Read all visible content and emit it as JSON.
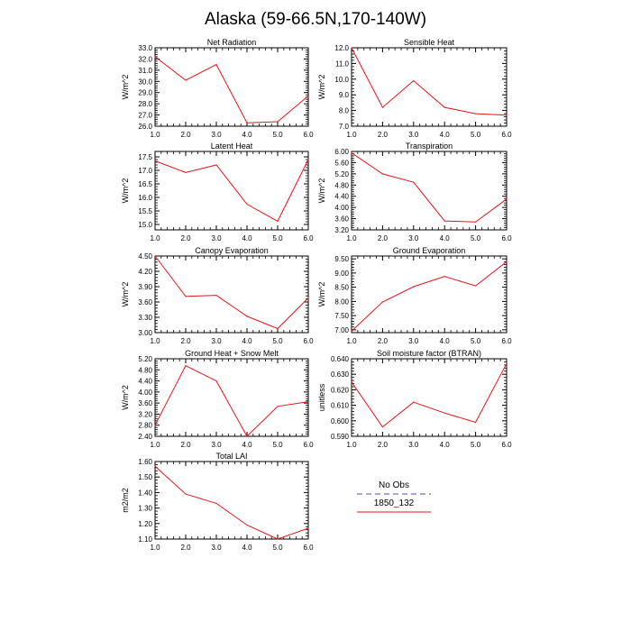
{
  "figure": {
    "title": "Alaska (59-66.5N,170-140W)"
  },
  "legend": {
    "entries": [
      {
        "label": "No Obs",
        "color": "#8a8ae0",
        "dashed": true
      },
      {
        "label": "1850_132",
        "color": "#e8141b",
        "dashed": false
      }
    ]
  },
  "chart_data": [
    {
      "type": "line",
      "title": "Net Radiation",
      "ylabel": "W/m^2",
      "x": [
        1,
        2,
        3,
        4,
        5,
        6
      ],
      "xlim": [
        1,
        6
      ],
      "xticks": [
        "1.0",
        "2.0",
        "3.0",
        "4.0",
        "5.0",
        "6.0"
      ],
      "ylim": [
        26,
        33
      ],
      "yticks": [
        "26.0",
        "27.0",
        "28.0",
        "29.0",
        "30.0",
        "31.0",
        "32.0",
        "33.0"
      ],
      "series": [
        {
          "name": "1850_132",
          "color": "#e8141b",
          "values": [
            32.2,
            30.1,
            31.5,
            26.3,
            26.4,
            28.7
          ]
        }
      ]
    },
    {
      "type": "line",
      "title": "Sensible Heat",
      "ylabel": "W/m^2",
      "x": [
        1,
        2,
        3,
        4,
        5,
        6
      ],
      "xlim": [
        1,
        6
      ],
      "xticks": [
        "1.0",
        "2.0",
        "3.0",
        "4.0",
        "5.0",
        "6.0"
      ],
      "ylim": [
        7,
        12
      ],
      "yticks": [
        "7.0",
        "8.0",
        "9.0",
        "10.0",
        "11.0",
        "12.0"
      ],
      "series": [
        {
          "name": "1850_132",
          "color": "#e8141b",
          "values": [
            12.0,
            8.2,
            9.9,
            8.2,
            7.8,
            7.7
          ]
        }
      ]
    },
    {
      "type": "line",
      "title": "Latent Heat",
      "ylabel": "W/m^2",
      "x": [
        1,
        2,
        3,
        4,
        5,
        6
      ],
      "xlim": [
        1,
        6
      ],
      "xticks": [
        "1.0",
        "2.0",
        "3.0",
        "4.0",
        "5.0",
        "6.0"
      ],
      "ylim": [
        14.8,
        17.7
      ],
      "yticks": [
        "15.0",
        "15.5",
        "16.0",
        "16.5",
        "17.0",
        "17.5"
      ],
      "ytickvals": [
        15.0,
        15.5,
        16.0,
        16.5,
        17.0,
        17.5
      ],
      "series": [
        {
          "name": "1850_132",
          "color": "#e8141b",
          "values": [
            17.35,
            16.92,
            17.2,
            15.75,
            15.12,
            17.4
          ]
        }
      ]
    },
    {
      "type": "line",
      "title": "Transpiration",
      "ylabel": "W/m^2",
      "x": [
        1,
        2,
        3,
        4,
        5,
        6
      ],
      "xlim": [
        1,
        6
      ],
      "xticks": [
        "1.0",
        "2.0",
        "3.0",
        "4.0",
        "5.0",
        "6.0"
      ],
      "ylim": [
        3.2,
        6.0
      ],
      "yticks": [
        "3.20",
        "3.60",
        "4.00",
        "4.40",
        "4.80",
        "5.20",
        "5.60",
        "6.00"
      ],
      "series": [
        {
          "name": "1850_132",
          "color": "#e8141b",
          "values": [
            5.95,
            5.2,
            4.9,
            3.52,
            3.48,
            4.3
          ]
        }
      ]
    },
    {
      "type": "line",
      "title": "Canopy Evaporation",
      "ylabel": "W/m^2",
      "x": [
        1,
        2,
        3,
        4,
        5,
        6
      ],
      "xlim": [
        1,
        6
      ],
      "xticks": [
        "1.0",
        "2.0",
        "3.0",
        "4.0",
        "5.0",
        "6.0"
      ],
      "ylim": [
        3.0,
        4.5
      ],
      "yticks": [
        "3.00",
        "3.30",
        "3.60",
        "3.90",
        "4.20",
        "4.50"
      ],
      "series": [
        {
          "name": "1850_132",
          "color": "#e8141b",
          "values": [
            4.5,
            3.71,
            3.73,
            3.32,
            3.08,
            3.68
          ]
        }
      ]
    },
    {
      "type": "line",
      "title": "Ground Evaporation",
      "ylabel": "W/m^2",
      "x": [
        1,
        2,
        3,
        4,
        5,
        6
      ],
      "xlim": [
        1,
        6
      ],
      "xticks": [
        "1.0",
        "2.0",
        "3.0",
        "4.0",
        "5.0",
        "6.0"
      ],
      "ylim": [
        6.9,
        9.6
      ],
      "yticks": [
        "7.00",
        "7.50",
        "8.00",
        "8.50",
        "9.00",
        "9.50"
      ],
      "ytickvals": [
        7.0,
        7.5,
        8.0,
        8.5,
        9.0,
        9.5
      ],
      "series": [
        {
          "name": "1850_132",
          "color": "#e8141b",
          "values": [
            6.95,
            7.98,
            8.52,
            8.88,
            8.55,
            9.4
          ]
        }
      ]
    },
    {
      "type": "line",
      "title": "Ground Heat + Snow Melt",
      "ylabel": "W/m^2",
      "x": [
        1,
        2,
        3,
        4,
        5,
        6
      ],
      "xlim": [
        1,
        6
      ],
      "xticks": [
        "1.0",
        "2.0",
        "3.0",
        "4.0",
        "5.0",
        "6.0"
      ],
      "ylim": [
        2.4,
        5.2
      ],
      "yticks": [
        "2.40",
        "2.80",
        "3.20",
        "3.60",
        "4.00",
        "4.40",
        "4.80",
        "5.20"
      ],
      "series": [
        {
          "name": "1850_132",
          "color": "#e8141b",
          "values": [
            2.8,
            4.95,
            4.4,
            2.4,
            3.48,
            3.65
          ]
        }
      ]
    },
    {
      "type": "line",
      "title": "Soil moisture factor (BTRAN)",
      "ylabel": "unitless",
      "x": [
        1,
        2,
        3,
        4,
        5,
        6
      ],
      "xlim": [
        1,
        6
      ],
      "xticks": [
        "1.0",
        "2.0",
        "3.0",
        "4.0",
        "5.0",
        "6.0"
      ],
      "ylim": [
        0.59,
        0.64
      ],
      "yticks": [
        "0.590",
        "0.600",
        "0.610",
        "0.620",
        "0.630",
        "0.640"
      ],
      "series": [
        {
          "name": "1850_132",
          "color": "#e8141b",
          "values": [
            0.625,
            0.596,
            0.612,
            0.605,
            0.599,
            0.637
          ]
        }
      ]
    },
    {
      "type": "line",
      "title": "Total LAI",
      "ylabel": "m2/m2",
      "x": [
        1,
        2,
        3,
        4,
        5,
        6
      ],
      "xlim": [
        1,
        6
      ],
      "xticks": [
        "1.0",
        "2.0",
        "3.0",
        "4.0",
        "5.0",
        "6.0"
      ],
      "ylim": [
        1.1,
        1.6
      ],
      "yticks": [
        "1.10",
        "1.20",
        "1.30",
        "1.40",
        "1.50",
        "1.60"
      ],
      "series": [
        {
          "name": "1850_132",
          "color": "#e8141b",
          "values": [
            1.57,
            1.39,
            1.33,
            1.19,
            1.1,
            1.17
          ]
        }
      ]
    }
  ]
}
